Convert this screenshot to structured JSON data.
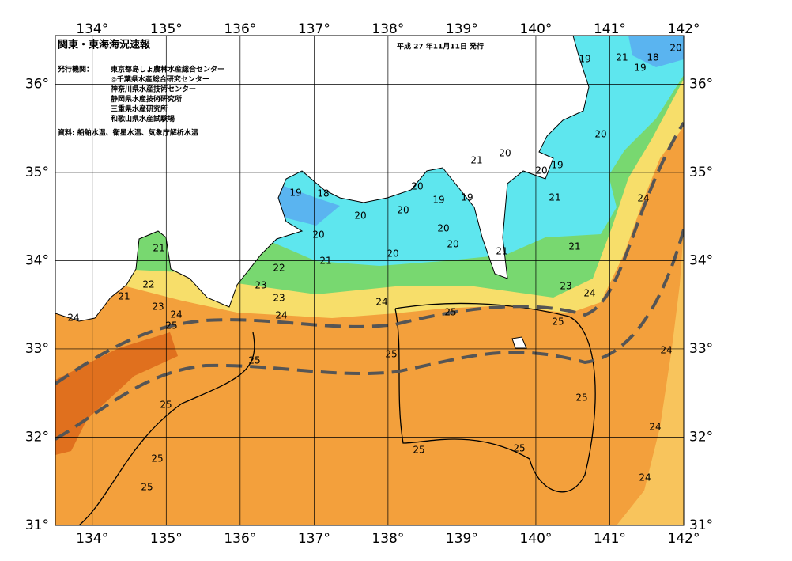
{
  "header": {
    "title": "関東・東海海況速報",
    "date": "平成 27 年11月11日 発行",
    "issuer_label": "発行機関：",
    "issuers": [
      "東京都島しょ農林水産総合センター",
      "◎千葉県水産総合研究センター",
      "神奈川県水産技術センター",
      "静岡県水産技術研究所",
      "三重県水産研究所",
      "和歌山県水産試験場"
    ],
    "source": "資料: 船舶水温、衛星水温、気象庁解析水温"
  },
  "map": {
    "lon_ticks": [
      {
        "value": 134,
        "label": "134°"
      },
      {
        "value": 135,
        "label": "135°"
      },
      {
        "value": 136,
        "label": "136°"
      },
      {
        "value": 137,
        "label": "137°"
      },
      {
        "value": 138,
        "label": "138°"
      },
      {
        "value": 139,
        "label": "139°"
      },
      {
        "value": 140,
        "label": "140°"
      },
      {
        "value": 141,
        "label": "141°"
      },
      {
        "value": 142,
        "label": "142°"
      }
    ],
    "lat_ticks": [
      {
        "value": 31,
        "label": "31°"
      },
      {
        "value": 32,
        "label": "32°"
      },
      {
        "value": 33,
        "label": "33°"
      },
      {
        "value": 34,
        "label": "34°"
      },
      {
        "value": 35,
        "label": "35°"
      },
      {
        "value": 36,
        "label": "36°"
      }
    ],
    "contour_labels": [
      "19",
      "21",
      "18",
      "20",
      "19",
      "20",
      "21",
      "20",
      "20",
      "19",
      "20",
      "19",
      "18",
      "19",
      "19",
      "21",
      "24",
      "20",
      "20",
      "20",
      "20",
      "20",
      "20",
      "21",
      "21",
      "21",
      "21",
      "22",
      "23",
      "22",
      "21",
      "23",
      "24",
      "23",
      "24",
      "23",
      "24",
      "24",
      "24",
      "25",
      "25",
      "25",
      "24",
      "25",
      "25",
      "25",
      "25",
      "24",
      "25",
      "25",
      "25",
      "24",
      "25"
    ]
  }
}
